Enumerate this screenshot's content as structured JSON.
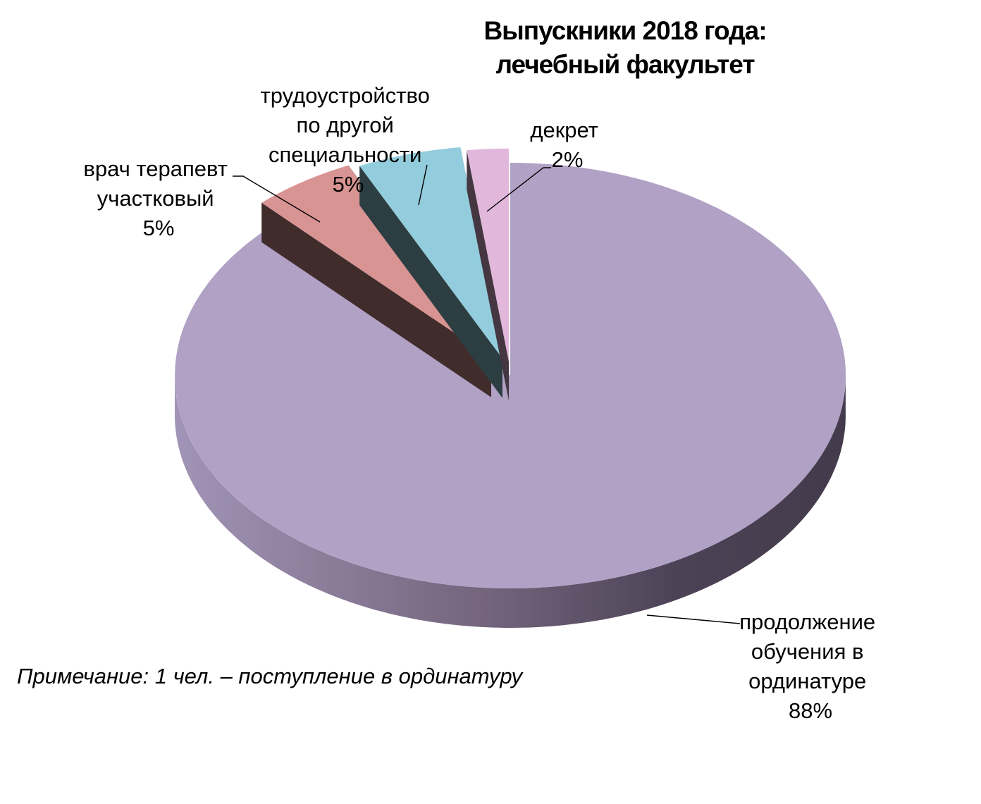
{
  "chart_data": {
    "type": "pie",
    "title_lines": [
      "Выпускники  2018 года:",
      "лечебный факультет"
    ],
    "slices": [
      {
        "label_lines": [
          "продолжение",
          "обучения в",
          "ординатуре"
        ],
        "pct_label": "88%",
        "value": 88,
        "color": "#b0a1c5"
      },
      {
        "label_lines": [
          "врач терапевт",
          "участковый"
        ],
        "pct_label": "5%",
        "value": 5,
        "color": "#d79492"
      },
      {
        "label_lines": [
          "трудоустройство",
          "по другой",
          "специальности"
        ],
        "pct_label": "5%",
        "value": 5,
        "color": "#93cddd"
      },
      {
        "label_lines": [
          "декрет"
        ],
        "pct_label": "2%",
        "value": 2,
        "color": "#e2b7dc"
      }
    ],
    "note": "Примечание:  1 чел. – поступление в ординатуру",
    "style": "3d-exploded"
  }
}
